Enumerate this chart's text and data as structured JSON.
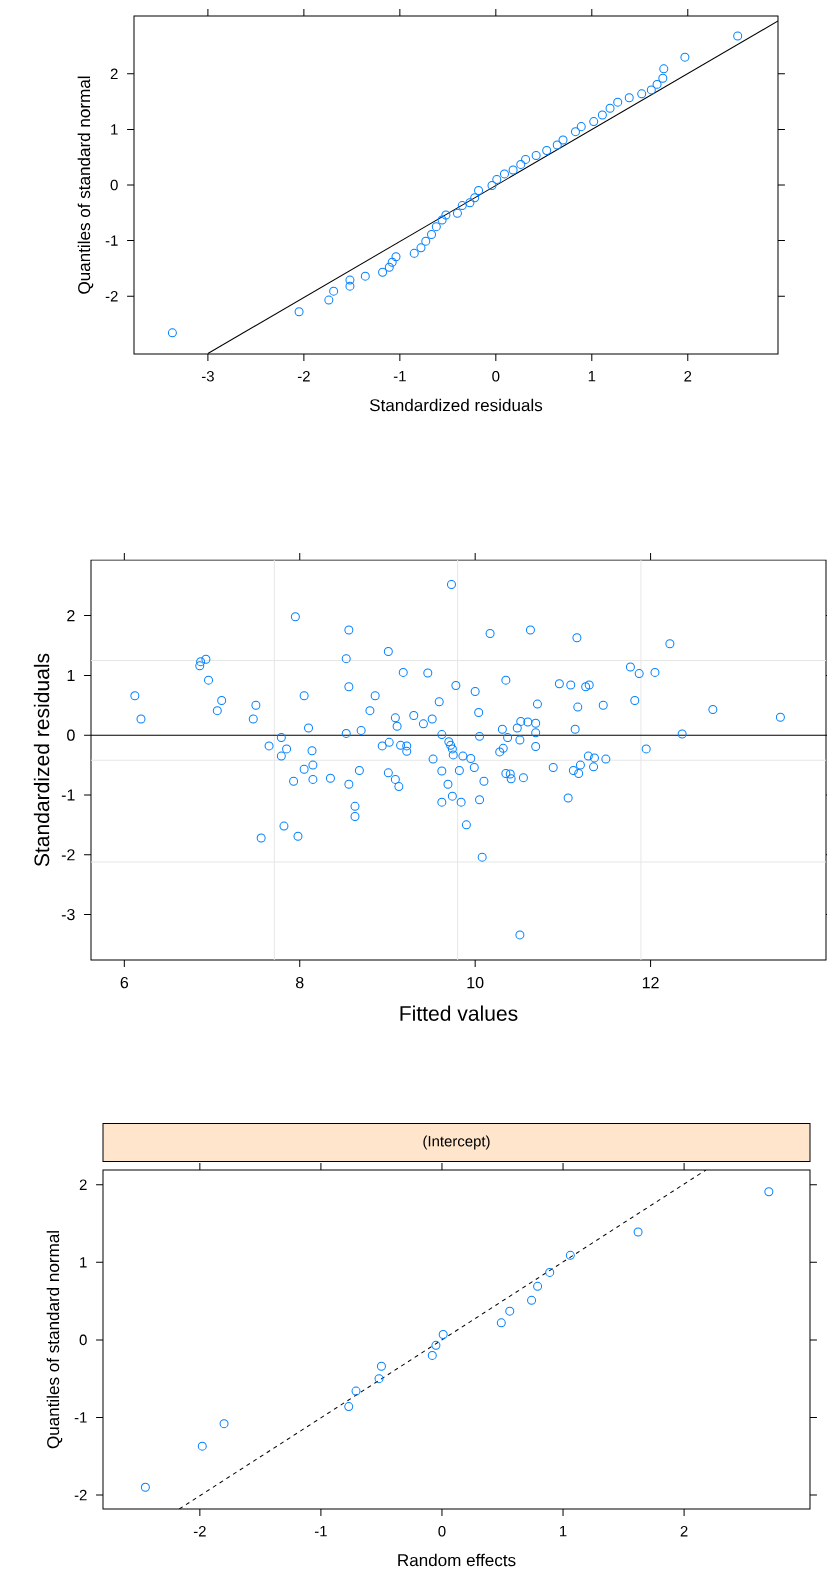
{
  "chart_data": [
    {
      "type": "scatter",
      "xlabel": "Standardized residuals",
      "ylabel": "Quantiles of standard normal",
      "xlim": [
        -3.77,
        2.94
      ],
      "ylim": [
        -3.04,
        3.04
      ],
      "xticks": [
        -3,
        -2,
        -1,
        0,
        1,
        2
      ],
      "yticks": [
        -2,
        -1,
        0,
        1,
        2
      ],
      "series": [
        {
          "marker": "circle",
          "color": "#0080ff",
          "x": [
            -3.37,
            -2.05,
            -1.74,
            -1.69,
            -1.52,
            -1.52,
            -1.36,
            -1.18,
            -1.11,
            -1.08,
            -1.04,
            -0.85,
            -0.78,
            -0.73,
            -0.67,
            -0.62,
            -0.56,
            -0.52,
            -0.4,
            -0.35,
            -0.27,
            -0.22,
            -0.18,
            -0.04,
            0.01,
            0.09,
            0.18,
            0.26,
            0.31,
            0.42,
            0.53,
            0.64,
            0.7,
            0.83,
            0.89,
            1.02,
            1.11,
            1.19,
            1.27,
            1.39,
            1.52,
            1.62,
            1.68,
            1.74,
            1.75,
            1.97,
            2.52
          ],
          "values": [
            -2.66,
            -2.28,
            -2.07,
            -1.91,
            -1.82,
            -1.71,
            -1.64,
            -1.57,
            -1.48,
            -1.39,
            -1.29,
            -1.23,
            -1.13,
            -1.01,
            -0.89,
            -0.75,
            -0.63,
            -0.54,
            -0.51,
            -0.37,
            -0.32,
            -0.23,
            -0.1,
            -0.01,
            0.1,
            0.2,
            0.27,
            0.37,
            0.46,
            0.53,
            0.62,
            0.72,
            0.81,
            0.96,
            1.05,
            1.14,
            1.26,
            1.38,
            1.49,
            1.57,
            1.64,
            1.71,
            1.81,
            1.92,
            2.09,
            2.3,
            2.68
          ]
        },
        {
          "type": "line",
          "color": "#000000",
          "line_style": "solid",
          "x": [
            -3.0,
            2.94
          ],
          "values": [
            -3.03,
            2.95
          ]
        }
      ]
    },
    {
      "type": "scatter",
      "xlabel": "Fitted values",
      "ylabel": "Standardized residuals",
      "xlim": [
        5.62,
        14.0
      ],
      "ylim": [
        -3.76,
        2.93
      ],
      "xticks": [
        6,
        8,
        10,
        12
      ],
      "yticks": [
        -3,
        -2,
        -1,
        0,
        1,
        2
      ],
      "ref_lines": [
        {
          "axis": "x",
          "value": 7.71,
          "color": "#e6e6e6"
        },
        {
          "axis": "x",
          "value": 9.8,
          "color": "#e6e6e6"
        },
        {
          "axis": "x",
          "value": 11.89,
          "color": "#e6e6e6"
        },
        {
          "axis": "y",
          "value": 1.25,
          "color": "#e6e6e6"
        },
        {
          "axis": "y",
          "value": -0.42,
          "color": "#e6e6e6"
        },
        {
          "axis": "y",
          "value": -2.12,
          "color": "#e6e6e6"
        },
        {
          "axis": "y",
          "value": 0,
          "color": "#000000"
        }
      ],
      "series": [
        {
          "marker": "circle",
          "color": "#0080ff",
          "x": [
            6.12,
            6.19,
            6.86,
            6.87,
            6.93,
            6.96,
            7.06,
            7.11,
            7.47,
            7.5,
            7.56,
            7.65,
            7.79,
            7.79,
            7.85,
            7.82,
            7.93,
            7.95,
            7.98,
            8.05,
            8.05,
            8.1,
            8.14,
            8.15,
            8.15,
            8.35,
            8.53,
            8.53,
            8.56,
            8.56,
            8.56,
            8.63,
            8.63,
            8.68,
            8.7,
            8.8,
            8.86,
            8.94,
            9.01,
            9.02,
            9.01,
            9.09,
            9.11,
            9.09,
            9.13,
            9.15,
            9.18,
            9.22,
            9.22,
            9.3,
            9.41,
            9.46,
            9.51,
            9.52,
            9.59,
            9.62,
            9.62,
            9.62,
            9.69,
            9.7,
            9.72,
            9.74,
            9.73,
            9.74,
            9.75,
            9.78,
            9.82,
            9.84,
            9.86,
            9.9,
            9.95,
            9.99,
            10.0,
            10.04,
            10.05,
            10.05,
            10.08,
            10.1,
            10.17,
            10.28,
            10.31,
            10.32,
            10.35,
            10.35,
            10.37,
            10.4,
            10.41,
            10.48,
            10.52,
            10.51,
            10.55,
            10.51,
            10.6,
            10.63,
            10.69,
            10.69,
            10.69,
            10.71,
            10.89,
            10.96,
            11.06,
            11.09,
            11.12,
            11.14,
            11.16,
            11.17,
            11.18,
            11.2,
            11.26,
            11.3,
            11.29,
            11.35,
            11.36,
            11.46,
            11.49,
            11.77,
            11.82,
            11.87,
            11.95,
            12.05,
            12.22,
            12.36,
            12.71,
            13.48
          ],
          "values": [
            0.66,
            0.27,
            1.16,
            1.23,
            1.27,
            0.92,
            0.41,
            0.58,
            0.27,
            0.5,
            -1.72,
            -0.18,
            -0.04,
            -0.35,
            -0.23,
            -1.52,
            -0.77,
            1.98,
            -1.69,
            0.66,
            -0.57,
            0.12,
            -0.26,
            -0.5,
            -0.74,
            -0.72,
            1.28,
            0.03,
            0.81,
            1.76,
            -0.82,
            -1.19,
            -1.36,
            -0.59,
            0.08,
            0.41,
            0.66,
            -0.18,
            1.4,
            -0.12,
            -0.63,
            0.29,
            0.15,
            -0.74,
            -0.86,
            -0.17,
            1.05,
            -0.18,
            -0.27,
            0.33,
            0.19,
            1.04,
            0.27,
            -0.4,
            0.56,
            0.01,
            -0.6,
            -1.12,
            -0.82,
            -0.11,
            -0.17,
            -0.23,
            2.52,
            -1.02,
            -0.33,
            0.83,
            -0.59,
            -1.12,
            -0.35,
            -1.5,
            -0.39,
            -0.54,
            0.73,
            0.38,
            -0.02,
            -1.08,
            -2.04,
            -0.77,
            1.7,
            -0.28,
            0.1,
            -0.22,
            0.92,
            -0.64,
            -0.04,
            -0.65,
            -0.73,
            0.12,
            0.23,
            -0.08,
            -0.71,
            -3.34,
            0.22,
            1.76,
            0.2,
            0.04,
            -0.19,
            0.52,
            -0.54,
            0.86,
            -1.05,
            0.84,
            -0.59,
            0.1,
            1.63,
            0.47,
            -0.64,
            -0.5,
            0.81,
            0.84,
            -0.35,
            -0.53,
            -0.38,
            0.5,
            -0.4,
            1.14,
            0.58,
            1.03,
            -0.23,
            1.05,
            1.53,
            0.02,
            0.43,
            0.3
          ]
        }
      ]
    },
    {
      "type": "scatter",
      "title": "(Intercept)",
      "xlabel": "Random effects",
      "ylabel": "Quantiles of standard normal",
      "xlim": [
        -2.8,
        3.04
      ],
      "ylim": [
        -2.18,
        2.19
      ],
      "xticks": [
        -2,
        -1,
        0,
        1,
        2
      ],
      "yticks": [
        -2,
        -1,
        0,
        1,
        2
      ],
      "series": [
        {
          "marker": "circle",
          "color": "#0080ff",
          "x": [
            -2.45,
            -1.98,
            -1.8,
            -0.77,
            -0.71,
            -0.52,
            -0.5,
            -0.08,
            -0.05,
            0.01,
            0.49,
            0.56,
            0.74,
            0.79,
            0.89,
            1.06,
            1.62,
            2.7
          ],
          "values": [
            -1.9,
            -1.37,
            -1.08,
            -0.86,
            -0.66,
            -0.5,
            -0.34,
            -0.2,
            -0.07,
            0.07,
            0.22,
            0.37,
            0.51,
            0.69,
            0.87,
            1.09,
            1.39,
            1.91
          ]
        },
        {
          "type": "line",
          "color": "#000000",
          "line_style": "dashed",
          "x": [
            -2.17,
            2.18
          ],
          "values": [
            -2.18,
            2.19
          ]
        }
      ]
    }
  ]
}
